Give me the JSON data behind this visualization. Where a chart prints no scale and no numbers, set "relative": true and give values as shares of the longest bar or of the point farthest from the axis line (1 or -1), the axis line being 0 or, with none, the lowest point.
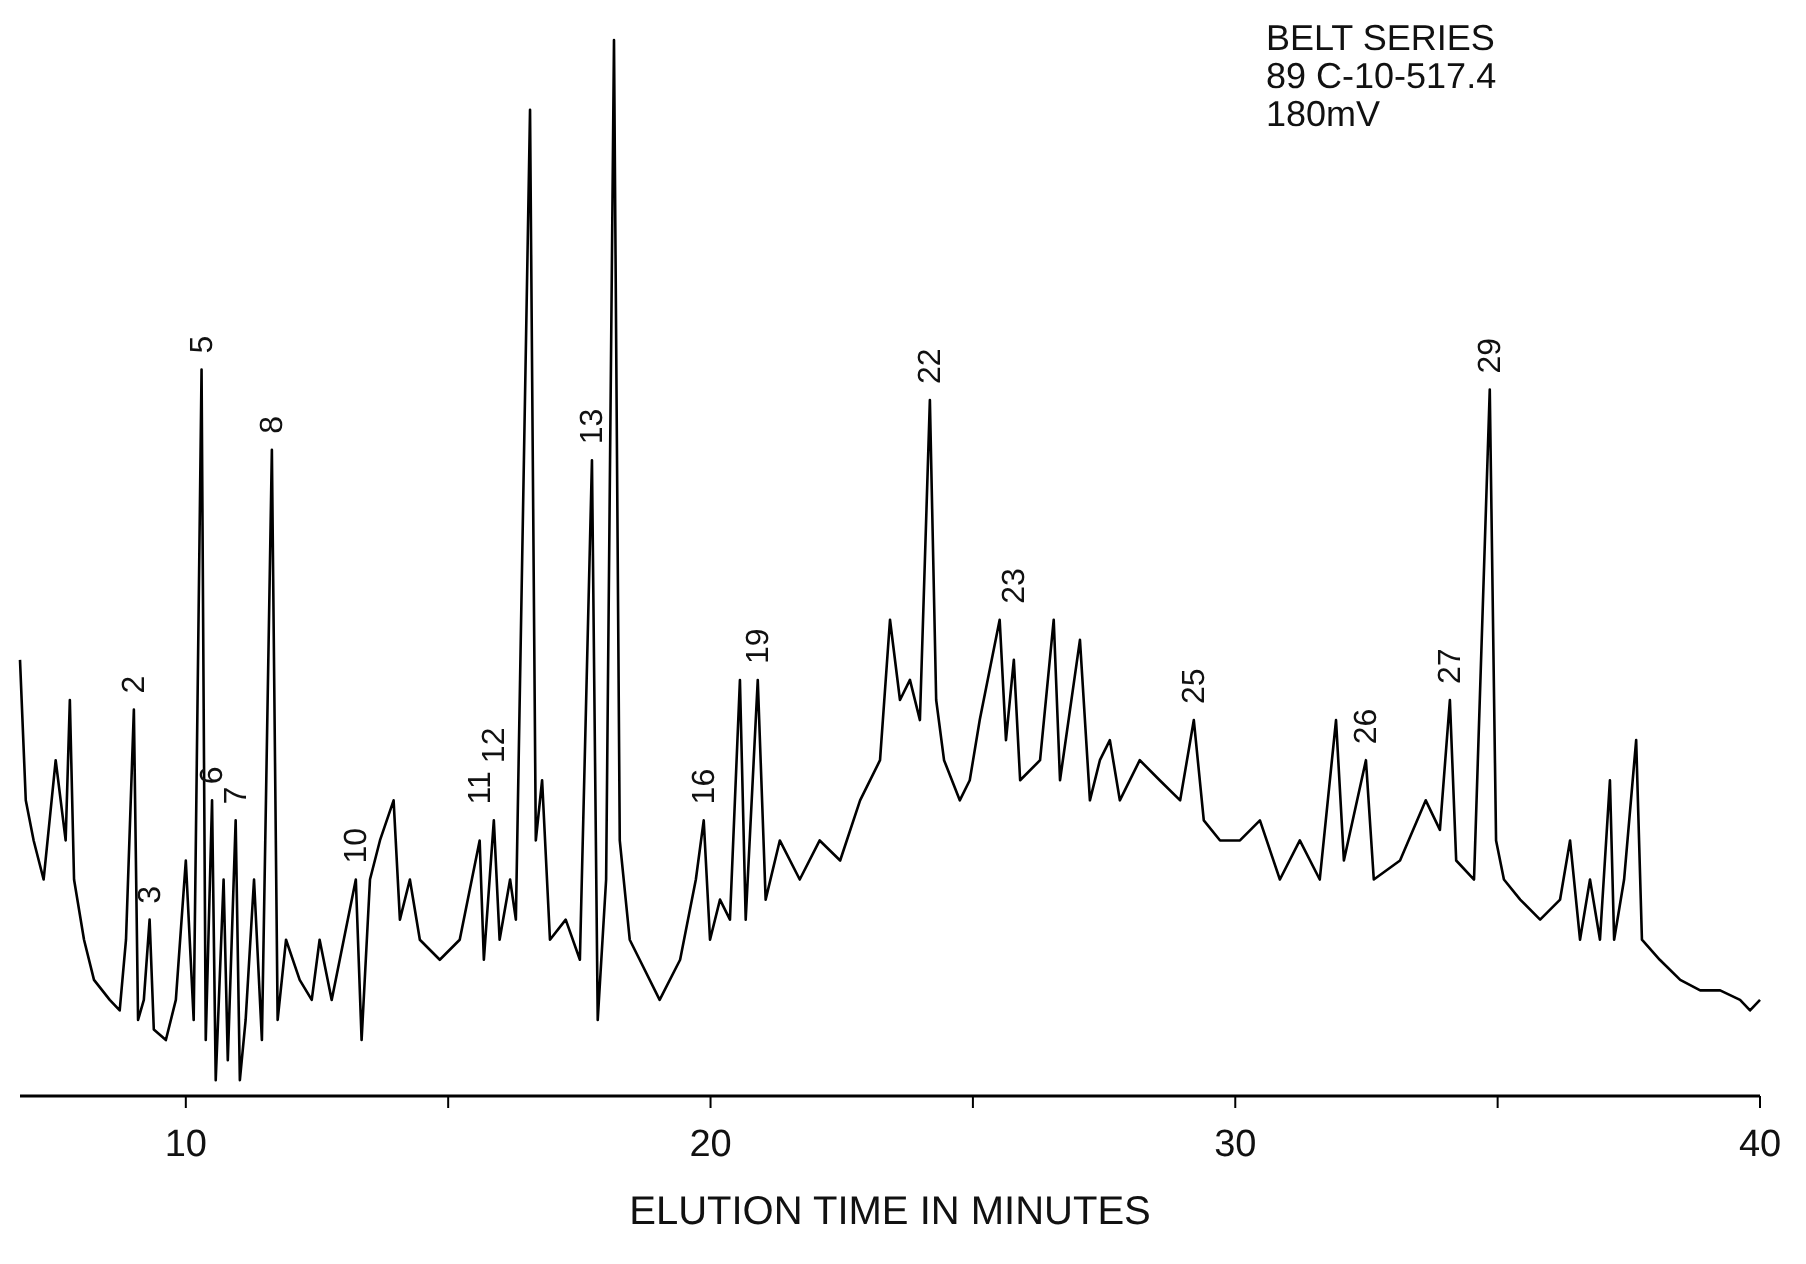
{
  "chart_data": {
    "type": "line",
    "relative": true,
    "xlabel": "ELUTION TIME IN MINUTES",
    "xlim": [
      6.84,
      40
    ],
    "xticks": [
      10,
      {
        "value": 15,
        "label": null
      },
      20,
      {
        "value": 25,
        "label": null
      },
      30,
      {
        "value": 35,
        "label": null
      },
      40
    ],
    "x": [
      6.84,
      6.95,
      7.1,
      7.29,
      7.52,
      7.71,
      7.79,
      7.87,
      8.06,
      8.25,
      8.55,
      8.74,
      8.86,
      9.01,
      9.09,
      9.2,
      9.31,
      9.39,
      9.62,
      9.81,
      10.0,
      10.15,
      10.3,
      10.38,
      10.5,
      10.57,
      10.72,
      10.8,
      10.95,
      11.03,
      11.14,
      11.3,
      11.45,
      11.64,
      11.75,
      11.91,
      12.17,
      12.4,
      12.55,
      12.78,
      13.01,
      13.24,
      13.35,
      13.51,
      13.7,
      13.96,
      14.08,
      14.27,
      14.46,
      14.84,
      15.22,
      15.6,
      15.68,
      15.87,
      15.98,
      16.18,
      16.29,
      16.56,
      16.67,
      16.79,
      16.94,
      17.24,
      17.51,
      17.74,
      17.85,
      18.01,
      18.16,
      18.27,
      18.46,
      18.65,
      19.03,
      19.42,
      19.72,
      19.87,
      19.99,
      20.18,
      20.37,
      20.56,
      20.67,
      20.9,
      21.05,
      21.32,
      21.7,
      22.08,
      22.47,
      22.85,
      23.23,
      23.42,
      23.61,
      23.8,
      23.99,
      24.18,
      24.3,
      24.45,
      24.75,
      24.94,
      25.13,
      25.51,
      25.63,
      25.78,
      25.9,
      26.28,
      26.54,
      26.66,
      27.04,
      27.23,
      27.42,
      27.61,
      27.8,
      28.18,
      28.56,
      28.95,
      29.21,
      29.4,
      29.71,
      30.09,
      30.47,
      30.85,
      31.23,
      31.61,
      31.92,
      32.07,
      32.49,
      32.64,
      33.14,
      33.63,
      33.9,
      34.09,
      34.21,
      34.55,
      34.85,
      34.97,
      35.12,
      35.43,
      35.81,
      36.19,
      36.38,
      36.57,
      36.76,
      36.95,
      37.14,
      37.22,
      37.41,
      37.64,
      37.75,
      38.09,
      38.48,
      38.86,
      39.24,
      39.62,
      39.81,
      40.0
    ],
    "series": [
      {
        "color": "#000000",
        "values": [
          0.413,
          0.28,
          0.242,
          0.205,
          0.318,
          0.242,
          0.375,
          0.205,
          0.148,
          0.11,
          0.091,
          0.081,
          0.148,
          0.366,
          0.072,
          0.091,
          0.167,
          0.063,
          0.053,
          0.091,
          0.223,
          0.072,
          0.688,
          0.053,
          0.28,
          0.015,
          0.205,
          0.034,
          0.261,
          0.015,
          0.072,
          0.205,
          0.053,
          0.612,
          0.072,
          0.148,
          0.11,
          0.091,
          0.148,
          0.091,
          0.148,
          0.205,
          0.053,
          0.205,
          0.242,
          0.28,
          0.167,
          0.205,
          0.148,
          0.129,
          0.148,
          0.242,
          0.129,
          0.261,
          0.148,
          0.205,
          0.167,
          0.934,
          0.242,
          0.299,
          0.148,
          0.167,
          0.129,
          0.602,
          0.072,
          0.205,
          1.0,
          0.242,
          0.148,
          0.129,
          0.091,
          0.129,
          0.205,
          0.261,
          0.148,
          0.186,
          0.167,
          0.394,
          0.167,
          0.394,
          0.186,
          0.242,
          0.205,
          0.242,
          0.223,
          0.28,
          0.318,
          0.451,
          0.375,
          0.394,
          0.356,
          0.659,
          0.375,
          0.318,
          0.28,
          0.299,
          0.356,
          0.451,
          0.337,
          0.413,
          0.299,
          0.318,
          0.451,
          0.299,
          0.432,
          0.28,
          0.318,
          0.337,
          0.28,
          0.318,
          0.299,
          0.28,
          0.356,
          0.261,
          0.242,
          0.242,
          0.261,
          0.205,
          0.242,
          0.205,
          0.356,
          0.223,
          0.318,
          0.205,
          0.223,
          0.28,
          0.252,
          0.375,
          0.223,
          0.205,
          0.669,
          0.242,
          0.205,
          0.186,
          0.167,
          0.186,
          0.242,
          0.148,
          0.205,
          0.148,
          0.299,
          0.148,
          0.205,
          0.337,
          0.148,
          0.129,
          0.11,
          0.1,
          0.1,
          0.091,
          0.081,
          0.091
        ]
      }
    ],
    "annotations": [
      "BELT SERIES",
      "89 C-10-517.4",
      "180mV",
      {
        "text": "2",
        "x": 9.01,
        "y": 0.366
      },
      {
        "text": "3",
        "x": 9.31,
        "y": 0.167
      },
      {
        "text": "5",
        "x": 10.3,
        "y": 0.688
      },
      {
        "text": "6",
        "x": 10.5,
        "y": 0.28
      },
      {
        "text": "7",
        "x": 10.95,
        "y": 0.261
      },
      {
        "text": "8",
        "x": 11.64,
        "y": 0.612
      },
      {
        "text": "10",
        "x": 13.24,
        "y": 0.205
      },
      {
        "text": "11",
        "x": 15.6,
        "y": 0.242
      },
      {
        "text": "12",
        "x": 15.87,
        "y": 0.261
      },
      {
        "text": "13",
        "x": 17.74,
        "y": 0.602
      },
      {
        "text": "16",
        "x": 19.87,
        "y": 0.261
      },
      {
        "text": "19",
        "x": 20.9,
        "y": 0.394
      },
      {
        "text": "22",
        "x": 24.18,
        "y": 0.659
      },
      {
        "text": "23",
        "x": 25.78,
        "y": 0.413
      },
      {
        "text": "25",
        "x": 29.21,
        "y": 0.356
      },
      {
        "text": "26",
        "x": 32.49,
        "y": 0.318
      },
      {
        "text": "27",
        "x": 34.09,
        "y": 0.375
      },
      {
        "text": "29",
        "x": 34.85,
        "y": 0.669
      }
    ]
  }
}
